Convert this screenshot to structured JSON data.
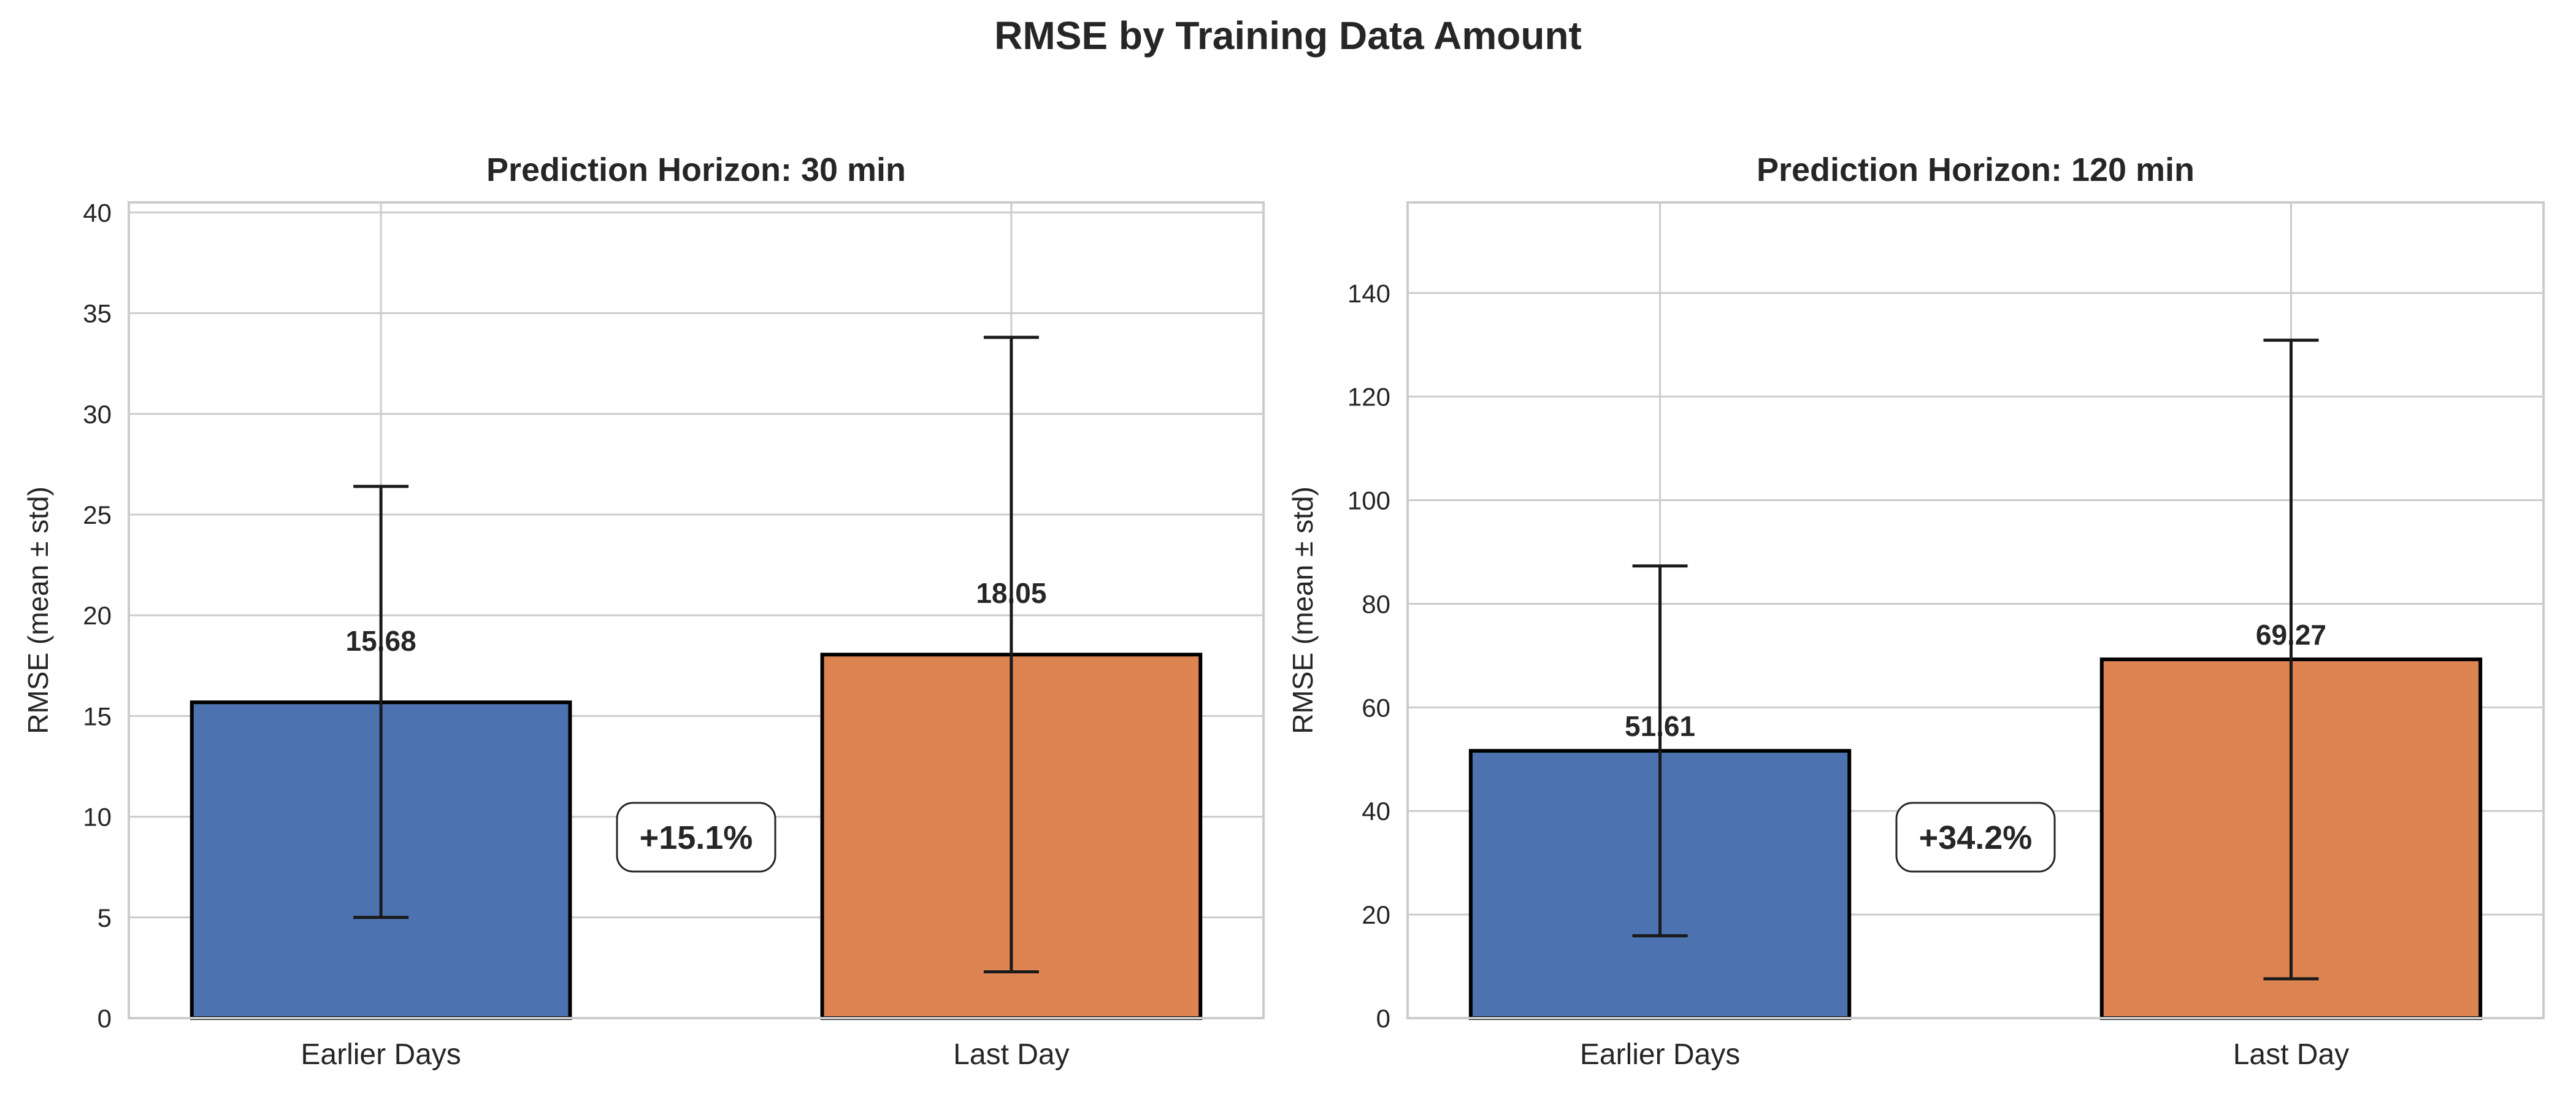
{
  "title": "RMSE by Training Data Amount",
  "colors": {
    "earlier_days": "#4c72b0",
    "last_day": "#dd8452"
  },
  "chart_data": [
    {
      "type": "bar",
      "title": "Prediction Horizon: 30 min",
      "xlabel": "",
      "ylabel": "RMSE (mean ± std)",
      "categories": [
        "Earlier Days",
        "Last Day"
      ],
      "values": [
        15.68,
        18.05
      ],
      "value_labels": [
        "15.68",
        "18.05"
      ],
      "error_low": [
        5.0,
        2.3
      ],
      "error_high": [
        26.4,
        33.8
      ],
      "ylim": [
        0,
        40.5
      ],
      "yticks": [
        0,
        5,
        10,
        15,
        20,
        25,
        30,
        35,
        40
      ],
      "change_label": "+15.1%",
      "grid": true
    },
    {
      "type": "bar",
      "title": "Prediction Horizon: 120 min",
      "xlabel": "",
      "ylabel": "RMSE (mean ± std)",
      "categories": [
        "Earlier Days",
        "Last Day"
      ],
      "values": [
        51.61,
        69.27
      ],
      "value_labels": [
        "51.61",
        "69.27"
      ],
      "error_low": [
        15.9,
        7.6
      ],
      "error_high": [
        87.3,
        130.9
      ],
      "ylim": [
        0,
        157.5
      ],
      "yticks": [
        0,
        20,
        40,
        60,
        80,
        100,
        120,
        140
      ],
      "change_label": "+34.2%",
      "grid": true
    }
  ]
}
